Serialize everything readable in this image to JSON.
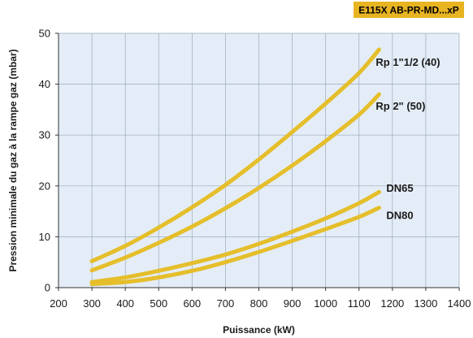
{
  "badge": {
    "text": "E115X AB-PR-MD...xP",
    "bg_color": "#e8b422"
  },
  "colors": {
    "plot_background": "#e4edf7",
    "grid": "#9aa9bd",
    "curve": "#e5be2b",
    "axis": "#333333"
  },
  "chart_data": {
    "type": "line",
    "title": "",
    "xlabel": "Puissance (kW)",
    "ylabel": "Pression minimale du gaz à la rampe gaz (mbar)",
    "xlim": [
      200,
      1400
    ],
    "ylim": [
      0,
      50
    ],
    "x_ticks": [
      "200",
      "300",
      "400",
      "500",
      "600",
      "700",
      "800",
      "900",
      "1000",
      "1100",
      "1200",
      "1300",
      "1400"
    ],
    "y_ticks": [
      "0",
      "10",
      "20",
      "30",
      "40",
      "50"
    ],
    "grid": true,
    "series": [
      {
        "name": "Rp 1\"1/2 (40)",
        "x": [
          300,
          400,
          500,
          600,
          700,
          800,
          900,
          1000,
          1100,
          1160
        ],
        "y": [
          5.2,
          8.2,
          11.8,
          15.8,
          20.2,
          25.2,
          30.6,
          36.2,
          42.2,
          46.8
        ]
      },
      {
        "name": "Rp 2\" (50)",
        "x": [
          300,
          400,
          500,
          600,
          700,
          800,
          900,
          1000,
          1100,
          1160
        ],
        "y": [
          3.4,
          5.9,
          8.8,
          12.0,
          15.6,
          19.6,
          24.0,
          28.8,
          34.0,
          38.0
        ]
      },
      {
        "name": "DN65",
        "x": [
          300,
          400,
          500,
          600,
          700,
          800,
          900,
          1000,
          1100,
          1160
        ],
        "y": [
          1.1,
          2.0,
          3.3,
          4.8,
          6.5,
          8.6,
          11.0,
          13.6,
          16.6,
          18.8
        ]
      },
      {
        "name": "DN80",
        "x": [
          300,
          400,
          500,
          600,
          700,
          800,
          900,
          1000,
          1100,
          1160
        ],
        "y": [
          0.7,
          1.1,
          2.0,
          3.3,
          5.0,
          7.0,
          9.2,
          11.5,
          13.9,
          15.7
        ]
      }
    ]
  }
}
